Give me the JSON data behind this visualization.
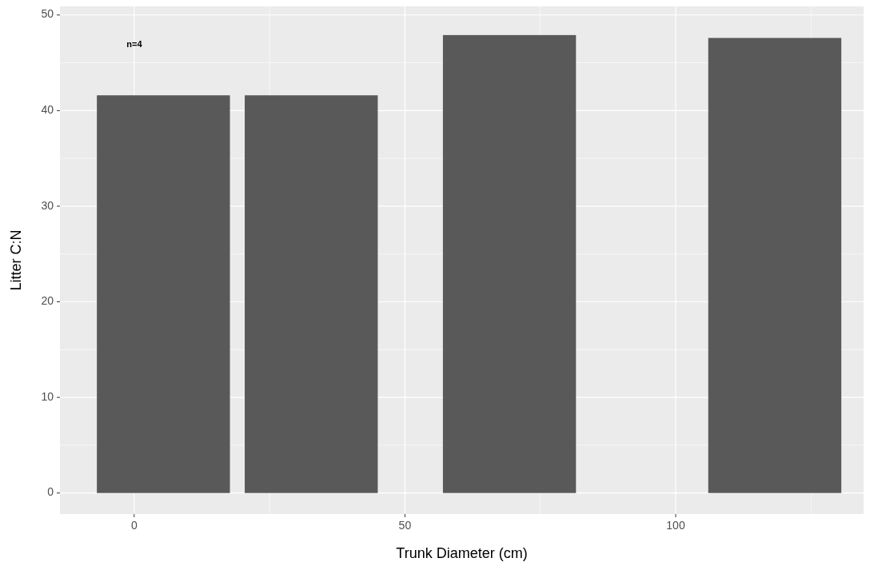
{
  "chart_data": {
    "type": "bar",
    "xlabel": "Trunk Diameter (cm)",
    "ylabel": "Litter C:N",
    "x": [
      5.4,
      32.7,
      69.3,
      118.3
    ],
    "values": [
      41.6,
      41.6,
      47.9,
      47.6
    ],
    "color": "#595959",
    "xlim": [
      -13.7,
      134.7
    ],
    "xticks": [
      0,
      50,
      100
    ],
    "ylim": [
      -2.2,
      50.9
    ],
    "yticks": [
      0,
      10,
      20,
      30,
      40,
      50
    ],
    "grid": true,
    "annotations": [
      "n=4"
    ]
  }
}
